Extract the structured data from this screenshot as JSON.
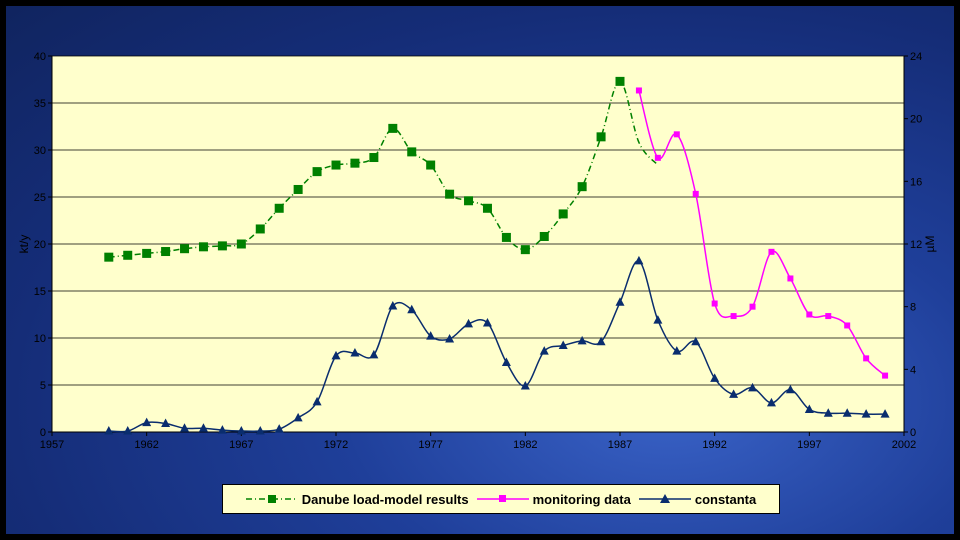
{
  "chart_data": {
    "type": "line",
    "title": "",
    "xlabel": "",
    "ylabel_left": "kt/y",
    "ylabel_right": "µM",
    "xlim": [
      1957,
      2002
    ],
    "xticks": [
      "1957",
      "1962",
      "1967",
      "1972",
      "1977",
      "1982",
      "1987",
      "1992",
      "1997",
      "2002"
    ],
    "ylim_left": [
      0,
      40
    ],
    "yticks_left": [
      "0",
      "5",
      "10",
      "15",
      "20",
      "25",
      "30",
      "35",
      "40"
    ],
    "ylim_right": [
      0,
      24
    ],
    "yticks_right": [
      "0",
      "4",
      "8",
      "12",
      "16",
      "20",
      "24"
    ],
    "grid": "horizontal",
    "legend_position": "bottom",
    "series": [
      {
        "name": "Danube load-model results",
        "axis": "left",
        "color": "#008000",
        "line_style": "dash-dot",
        "marker": "square",
        "x": [
          1960,
          1961,
          1962,
          1963,
          1964,
          1965,
          1966,
          1967,
          1968,
          1969,
          1970,
          1971,
          1972,
          1973,
          1974,
          1975,
          1976,
          1977,
          1978,
          1979,
          1980,
          1981,
          1982,
          1983,
          1984,
          1985,
          1986,
          1987,
          1988,
          1989
        ],
        "y": [
          18.6,
          18.8,
          19.0,
          19.2,
          19.5,
          19.7,
          19.8,
          20.0,
          21.6,
          23.8,
          25.8,
          27.7,
          28.4,
          28.6,
          29.2,
          32.3,
          29.8,
          28.4,
          25.3,
          24.6,
          23.8,
          20.7,
          19.4,
          20.8,
          23.2,
          26.1,
          31.4,
          37.3,
          30.8,
          28.4
        ],
        "marker_count": 28
      },
      {
        "name": "monitoring data",
        "axis": "right",
        "color": "#ff00ff",
        "line_style": "solid",
        "marker": "square",
        "x": [
          1988,
          1989,
          1990,
          1991,
          1992,
          1993,
          1994,
          1995,
          1996,
          1997,
          1998,
          1999,
          2000,
          2001
        ],
        "y": [
          21.8,
          17.5,
          19.0,
          15.2,
          8.2,
          7.4,
          8.0,
          11.5,
          9.8,
          7.5,
          7.4,
          6.8,
          4.7,
          3.6
        ]
      },
      {
        "name": "constanta",
        "axis": "left",
        "color": "#0a2d6e",
        "line_style": "solid",
        "marker": "triangle",
        "x": [
          1960,
          1961,
          1962,
          1963,
          1964,
          1965,
          1966,
          1967,
          1968,
          1969,
          1970,
          1971,
          1972,
          1973,
          1974,
          1975,
          1976,
          1977,
          1978,
          1979,
          1980,
          1981,
          1982,
          1983,
          1984,
          1985,
          1986,
          1987,
          1988,
          1989,
          1990,
          1991,
          1992,
          1993,
          1994,
          1995,
          1996,
          1997,
          1998,
          1999,
          2000,
          2001
        ],
        "y": [
          0.1,
          0.1,
          1.0,
          0.9,
          0.4,
          0.4,
          0.2,
          0.1,
          0.1,
          0.3,
          1.5,
          3.2,
          8.1,
          8.4,
          8.2,
          13.4,
          13.0,
          10.2,
          9.9,
          11.5,
          11.6,
          7.4,
          4.9,
          8.6,
          9.2,
          9.7,
          9.6,
          13.8,
          18.2,
          11.9,
          8.6,
          9.6,
          5.7,
          4.0,
          4.7,
          3.1,
          4.5,
          2.4,
          2.0,
          2.0,
          1.9,
          1.9
        ]
      }
    ]
  },
  "colors": {
    "plot_background": "#ffffcc",
    "slide_background": "#1f3f9a",
    "gridline": "#000000"
  }
}
